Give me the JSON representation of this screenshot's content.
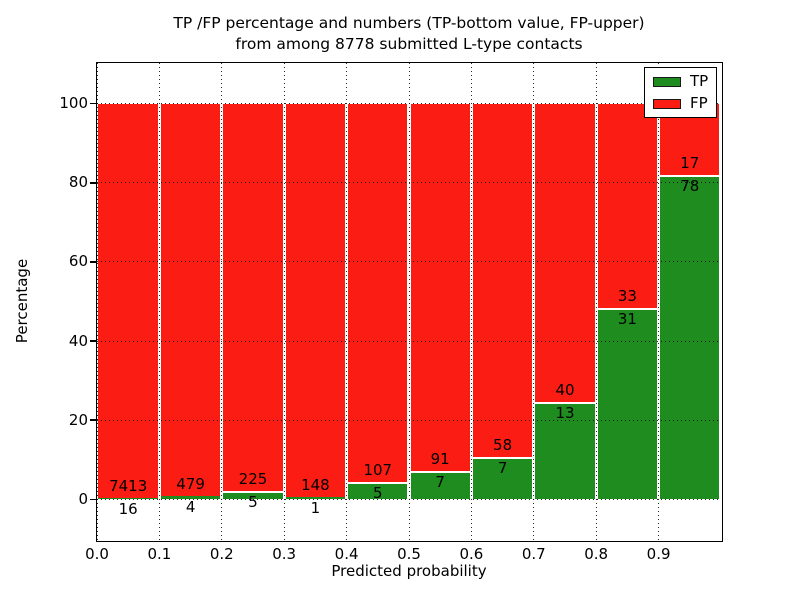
{
  "figure": {
    "title_line1": "TP /FP percentage and numbers (TP-bottom value, FP-upper)",
    "title_line2": "from among 8778 submitted L-type contacts",
    "xlabel": "Predicted probability",
    "ylabel": "Percentage"
  },
  "chart_data": {
    "type": "bar",
    "subtype": "stacked-percentage",
    "title": "TP /FP percentage and numbers (TP-bottom value, FP-upper) from among 8778 submitted L-type contacts",
    "xlabel": "Predicted probability",
    "ylabel": "Percentage",
    "total_contacts": 8778,
    "grid": true,
    "legend_position": "upper right",
    "xlim": [
      0.0,
      1.0
    ],
    "ylim": [
      -10.3,
      110.3
    ],
    "bin_width": 0.1,
    "bin_starts": [
      0.0,
      0.1,
      0.2,
      0.3,
      0.4,
      0.5,
      0.6,
      0.7,
      0.8,
      0.9
    ],
    "xtick_labels": [
      "0.0",
      "0.1",
      "0.2",
      "0.3",
      "0.4",
      "0.5",
      "0.6",
      "0.7",
      "0.8",
      "0.9"
    ],
    "ytick_values": [
      0,
      20,
      40,
      60,
      80,
      100
    ],
    "series": [
      {
        "name": "TP",
        "color": "#1e8c1e",
        "counts": [
          16,
          4,
          5,
          1,
          5,
          7,
          7,
          13,
          31,
          78
        ]
      },
      {
        "name": "FP",
        "color": "#fb1d13",
        "counts": [
          7413,
          479,
          225,
          148,
          107,
          91,
          58,
          40,
          33,
          17
        ]
      }
    ],
    "bars_note": "each bar normalized to 100%, TP percent = tp/(tp+fp)*100, TP on bottom"
  }
}
